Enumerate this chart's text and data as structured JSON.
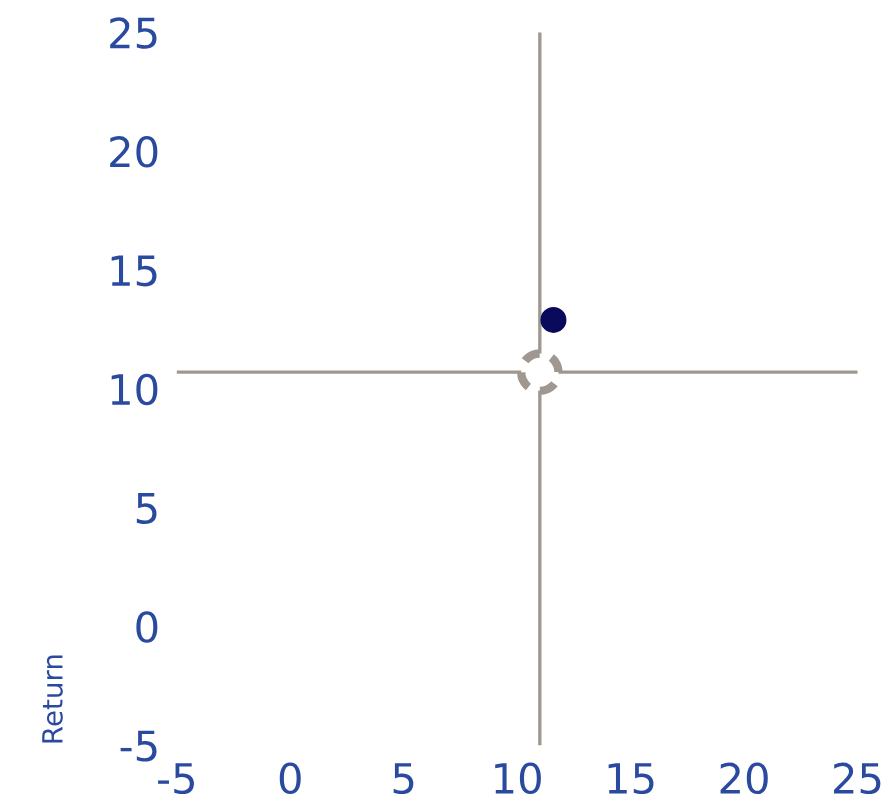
{
  "chart_data": {
    "type": "scatter",
    "ylabel": "Return",
    "series": [
      {
        "color": "#0a0a5c",
        "x": [
          11.6
        ],
        "values": [
          12.9
        ]
      },
      {
        "color": "#a09890",
        "x": [
          11
        ],
        "values": [
          10.7
        ],
        "line_style": "dashed"
      }
    ],
    "marker": "circle",
    "xlim": [
      -5,
      25
    ],
    "xticks": [
      -5,
      0,
      5,
      10,
      15,
      20,
      25
    ],
    "ylim": [
      -5,
      25
    ],
    "yticks": [
      -5,
      0,
      5,
      10,
      15,
      20,
      25
    ],
    "ref_lines": [
      {
        "axis": "x",
        "value": 11,
        "color": "#a09890"
      },
      {
        "axis": "y",
        "value": 10.7,
        "color": "#a09890"
      }
    ],
    "grid": false,
    "legend": false
  }
}
